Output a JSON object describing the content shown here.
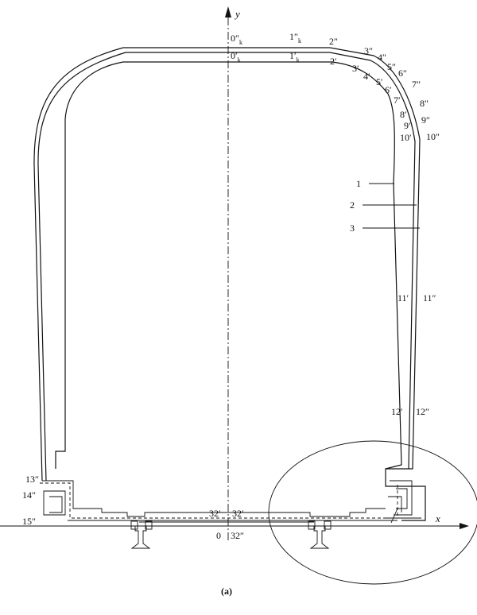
{
  "axes": {
    "y_label": "y",
    "x_label": "x",
    "origin_label": "0"
  },
  "points": {
    "p0_outer": "0″",
    "p0_outer_sub": "k",
    "p0_inner": "0′",
    "p0_inner_sub": "k",
    "p1_outer": "1″",
    "p1_outer_sub": "k",
    "p1_inner": "1′",
    "p1_inner_sub": "k",
    "p2_outer": "2″",
    "p2_inner": "2′",
    "p3_outer": "3″",
    "p3_inner": "3′",
    "p4_outer": "4″",
    "p4_inner": "4′",
    "p5_outer": "5″",
    "p5_inner": "5′",
    "p6_outer": "6″",
    "p6_inner": "6′",
    "p7_outer": "7″",
    "p7_inner": "7′",
    "p8_outer": "8″",
    "p8_inner": "8′",
    "p9_outer": "9″",
    "p9_inner": "9′",
    "p10_outer": "10″",
    "p10_inner": "10′",
    "p11_outer": "11″",
    "p11_inner": "11′",
    "p12_outer": "12″",
    "p12_inner": "12′",
    "p13_outer": "13″",
    "p14_outer": "14″",
    "p15_outer": "15″",
    "p32_inner_left": "32′",
    "p32_inner_right": "32′",
    "p32_outer": "32″"
  },
  "leaders": {
    "l1": "1",
    "l2": "2",
    "l3": "3"
  },
  "caption": "(a)"
}
